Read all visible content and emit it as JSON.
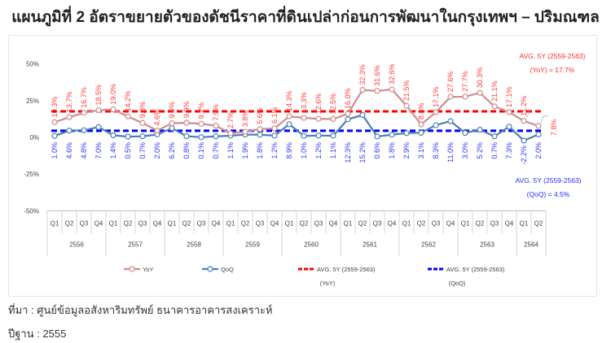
{
  "title": "แผนภูมิที่ 2 อัตราขยายตัวของดัชนีราคาที่ดินเปล่าก่อนการพัฒนาในกรุงเทพฯ – ปริมณฑล",
  "source": "ที่มา : ศูนย์ข้อมูลอสังหาริมทรัพย์ ธนาคารอาคารสงเคราะห์",
  "base_year": "ปีฐาน : 2555",
  "chart_data": {
    "type": "line",
    "title": "แผนภูมิที่ 2 อัตราขยายตัวของดัชนีราคาที่ดินเปล่าก่อนการพัฒนาในกรุงเทพฯ – ปริมณฑล",
    "xlabel": "",
    "ylabel": "",
    "ylim": [
      -50,
      50
    ],
    "yticks": [
      "50%",
      "25%",
      "0%",
      "-25%",
      "-50%"
    ],
    "grid": false,
    "legend_position": "bottom",
    "years": [
      "2556",
      "2557",
      "2558",
      "2559",
      "2560",
      "2561",
      "2562",
      "2563",
      "2564"
    ],
    "quarters_per_year": [
      4,
      4,
      4,
      4,
      4,
      4,
      4,
      4,
      2
    ],
    "categories": [
      "Q1",
      "Q2",
      "Q3",
      "Q4",
      "Q1",
      "Q2",
      "Q3",
      "Q4",
      "Q1",
      "Q2",
      "Q3",
      "Q4",
      "Q1",
      "Q2",
      "Q3",
      "Q4",
      "Q1",
      "Q2",
      "Q3",
      "Q4",
      "Q1",
      "Q2",
      "Q3",
      "Q4",
      "Q1",
      "Q2",
      "Q3",
      "Q4",
      "Q1",
      "Q2",
      "Q3",
      "Q4",
      "Q1",
      "Q2"
    ],
    "series": [
      {
        "name": "YoY",
        "color": "#d08c8c",
        "values": [
          10.3,
          13.7,
          16.7,
          18.5,
          19.0,
          14.2,
          9.8,
          4.6,
          9.6,
          9.9,
          9.2,
          7.9,
          2.7,
          3.8,
          5.6,
          6.1,
          14.3,
          13.3,
          12.6,
          12.5,
          16.0,
          32.3,
          31.6,
          32.6,
          21.5,
          8.8,
          17.1,
          27.6,
          27.7,
          30.3,
          21.1,
          17.1,
          11.2,
          7.8
        ],
        "labels": [
          "10.3%",
          "13.7%",
          "16.7%",
          "18.5%",
          "19.0%",
          "14.2%",
          "9.8%",
          "4.6%",
          "9.6%",
          "9.9%",
          "9.2%",
          "7.9%",
          "2.7%",
          "3.8%",
          "5.6%",
          "6.1%",
          "14.3%",
          "13.3%",
          "12.6%",
          "12.5%",
          "16.0%",
          "32.3%",
          "31.6%",
          "32.6%",
          "21.5%",
          "8.8%",
          "17.1%",
          "27.6%",
          "27.7%",
          "30.3%",
          "21.1%",
          "17.1%",
          "11.2%",
          "7.8%"
        ]
      },
      {
        "name": "QoQ",
        "color": "#4a7fb5",
        "values": [
          1.0,
          4.6,
          4.8,
          7.0,
          1.4,
          0.5,
          0.7,
          2.0,
          6.2,
          0.8,
          0.1,
          0.7,
          1.1,
          1.9,
          1.8,
          1.2,
          8.9,
          1.0,
          1.2,
          1.1,
          12.3,
          15.2,
          0.6,
          1.8,
          2.9,
          3.1,
          8.3,
          11.0,
          3.0,
          5.2,
          0.7,
          7.3,
          -2.2,
          2.0
        ],
        "labels": [
          "1.0%",
          "4.6%",
          "4.8%",
          "7.0%",
          "1.4%",
          "0.5%",
          "0.7%",
          "2.0%",
          "6.2%",
          "0.8%",
          "0.1%",
          "0.7%",
          "1.1%",
          "1.9%",
          "1.8%",
          "1.2%",
          "8.9%",
          "1.0%",
          "1.2%",
          "1.1%",
          "12.3%",
          "15.2%",
          "0.6%",
          "1.8%",
          "2.9%",
          "3.1%",
          "8.3%",
          "11.0%",
          "3.0%",
          "5.2%",
          "0.7%",
          "7.3%",
          "-2.2%",
          "2.0%"
        ]
      },
      {
        "name": "AVG. 5Y (2559-2563) (YoY)",
        "color": "#ff0000",
        "constant": 17.7,
        "style": "dashed"
      },
      {
        "name": "AVG. 5Y (2559-2563) (QoQ)",
        "color": "#0000ff",
        "constant": 4.5,
        "style": "dashed"
      }
    ],
    "annotations": [
      {
        "line1": "AVG. 5Y (2559-2563)",
        "line2": "(YoY) = 17.7%",
        "color": "#ff2a2a"
      },
      {
        "line1": "AVG. 5Y (2559-2563)",
        "line2": "(QoQ) = 4.5%",
        "color": "#2a2aff"
      }
    ],
    "legend": [
      {
        "label": "YoY",
        "color": "#d08c8c",
        "style": "line-marker"
      },
      {
        "label": "QoQ",
        "color": "#4a7fb5",
        "style": "line-marker"
      },
      {
        "label": "AVG. 5Y (2559-2563)",
        "sub": "(YoY)",
        "color": "#ff0000",
        "style": "dashed"
      },
      {
        "label": "AVG. 5Y (2559-2563)",
        "sub": "(QoQ)",
        "color": "#0000ff",
        "style": "dashed"
      }
    ]
  }
}
